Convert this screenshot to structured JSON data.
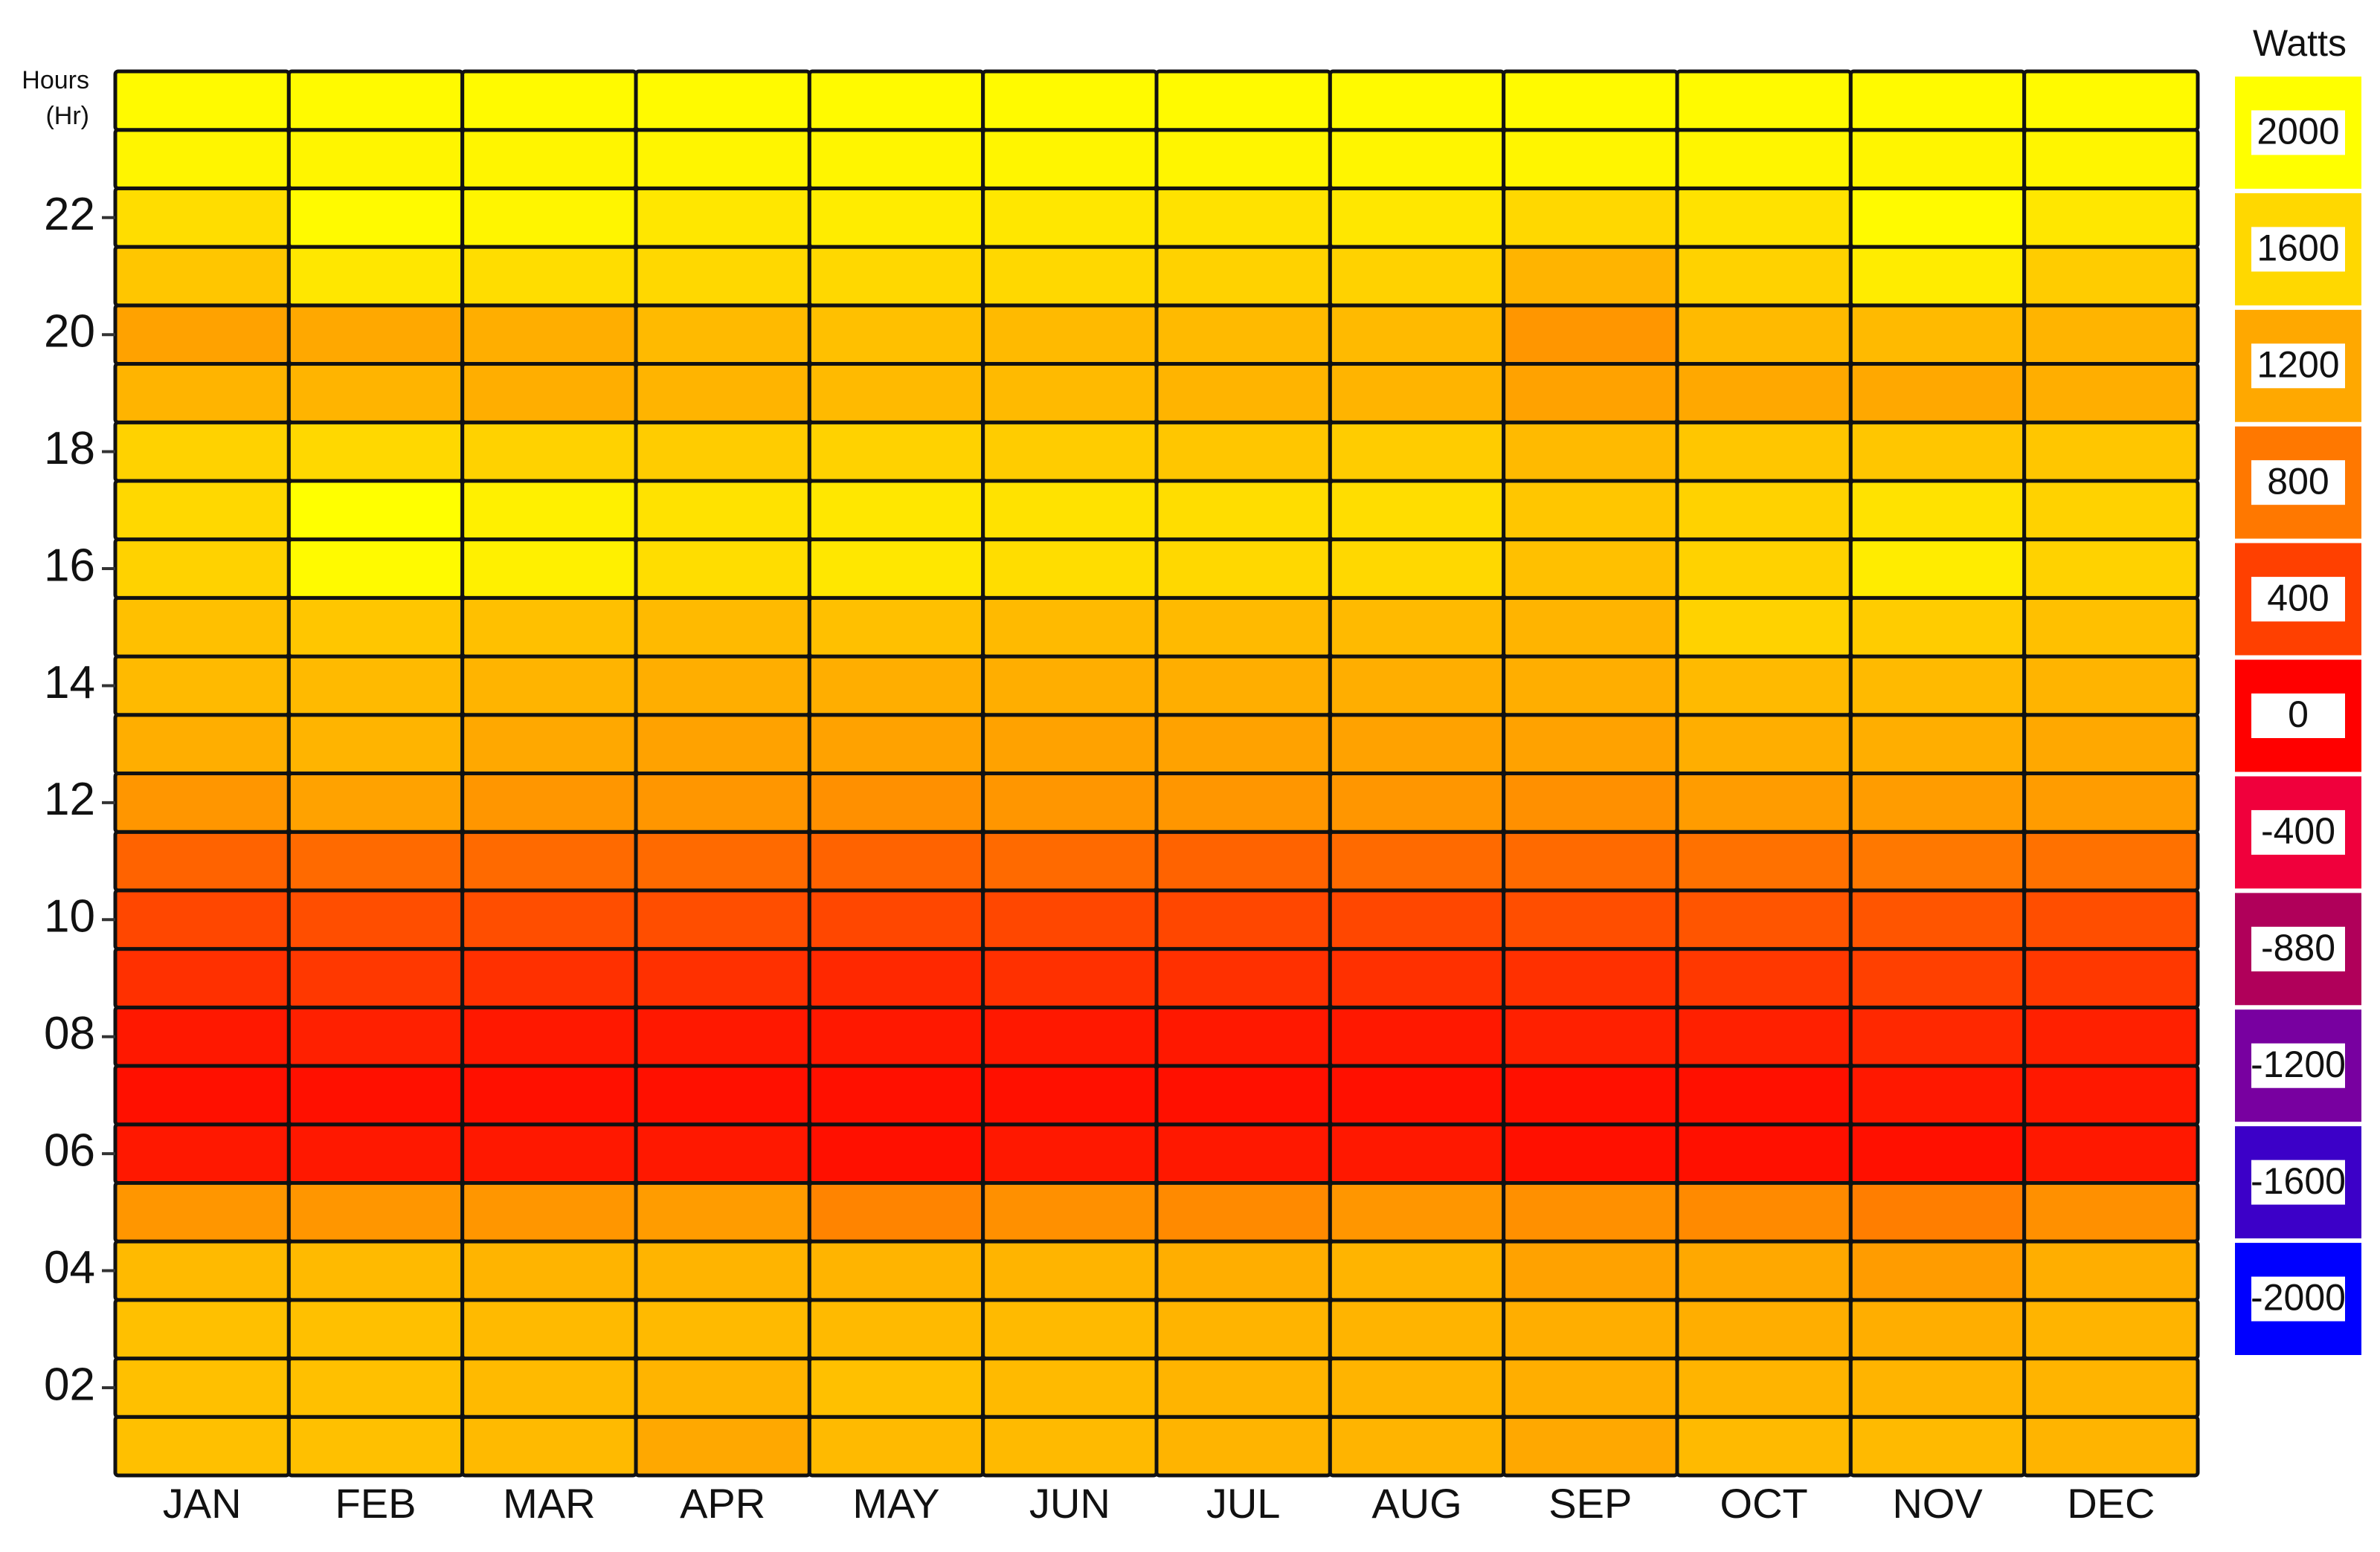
{
  "chart_data": {
    "type": "heatmap",
    "y_label": [
      "Hours",
      "(Hr)"
    ],
    "categories": [
      "JAN",
      "FEB",
      "MAR",
      "APR",
      "MAY",
      "JUN",
      "JUL",
      "AUG",
      "SEP",
      "OCT",
      "NOV",
      "DEC"
    ],
    "y": [
      1,
      2,
      3,
      4,
      5,
      6,
      7,
      8,
      9,
      10,
      11,
      12,
      13,
      14,
      15,
      16,
      17,
      18,
      19,
      20,
      21,
      22,
      23,
      24
    ],
    "ylim": [
      0.5,
      24.5
    ],
    "yticks": [
      {
        "value": 2,
        "label": "02"
      },
      {
        "value": 4,
        "label": "04"
      },
      {
        "value": 6,
        "label": "06"
      },
      {
        "value": 8,
        "label": "08"
      },
      10,
      12,
      14,
      16,
      18,
      20,
      22
    ],
    "z": [
      [
        1400,
        1400,
        1350,
        1200,
        1350,
        1350,
        1300,
        1300,
        1200,
        1350,
        1350,
        1300
      ],
      [
        1400,
        1400,
        1350,
        1300,
        1400,
        1350,
        1300,
        1300,
        1250,
        1300,
        1300,
        1300
      ],
      [
        1400,
        1400,
        1350,
        1350,
        1350,
        1350,
        1300,
        1300,
        1250,
        1250,
        1250,
        1300
      ],
      [
        1350,
        1350,
        1300,
        1300,
        1300,
        1300,
        1250,
        1300,
        1150,
        1200,
        1100,
        1250
      ],
      [
        1050,
        1050,
        1050,
        1100,
        900,
        1000,
        950,
        1050,
        1000,
        950,
        850,
        1000
      ],
      [
        150,
        150,
        150,
        150,
        100,
        150,
        150,
        150,
        100,
        100,
        100,
        150
      ],
      [
        100,
        100,
        100,
        100,
        100,
        100,
        100,
        100,
        100,
        100,
        150,
        150
      ],
      [
        150,
        200,
        150,
        150,
        150,
        150,
        150,
        150,
        200,
        200,
        250,
        200
      ],
      [
        300,
        350,
        300,
        300,
        250,
        300,
        300,
        300,
        300,
        350,
        400,
        350
      ],
      [
        450,
        500,
        500,
        500,
        450,
        450,
        450,
        450,
        500,
        550,
        550,
        500
      ],
      [
        650,
        700,
        700,
        700,
        650,
        700,
        650,
        700,
        700,
        750,
        800,
        750
      ],
      [
        1050,
        1150,
        1050,
        1050,
        1000,
        1050,
        1050,
        1050,
        1000,
        1100,
        1100,
        1100
      ],
      [
        1250,
        1300,
        1200,
        1150,
        1150,
        1150,
        1150,
        1150,
        1150,
        1250,
        1250,
        1200
      ],
      [
        1350,
        1350,
        1300,
        1250,
        1250,
        1250,
        1250,
        1250,
        1250,
        1350,
        1350,
        1300
      ],
      [
        1400,
        1450,
        1400,
        1350,
        1400,
        1350,
        1350,
        1350,
        1300,
        1550,
        1500,
        1400
      ],
      [
        1550,
        1950,
        1850,
        1650,
        1750,
        1650,
        1600,
        1600,
        1400,
        1550,
        1800,
        1550
      ],
      [
        1600,
        2000,
        1850,
        1700,
        1750,
        1700,
        1650,
        1650,
        1450,
        1550,
        1700,
        1550
      ],
      [
        1550,
        1600,
        1550,
        1500,
        1550,
        1500,
        1450,
        1500,
        1350,
        1450,
        1450,
        1450
      ],
      [
        1300,
        1300,
        1250,
        1300,
        1350,
        1350,
        1300,
        1300,
        1150,
        1200,
        1200,
        1250
      ],
      [
        1150,
        1200,
        1250,
        1350,
        1400,
        1350,
        1350,
        1350,
        1050,
        1350,
        1350,
        1300
      ],
      [
        1450,
        1750,
        1650,
        1600,
        1600,
        1600,
        1550,
        1550,
        1300,
        1550,
        1800,
        1500
      ],
      [
        1650,
        1950,
        1900,
        1750,
        1800,
        1750,
        1700,
        1750,
        1600,
        1700,
        1950,
        1750
      ],
      [
        1900,
        1900,
        1900,
        1900,
        1900,
        1900,
        1900,
        1900,
        1900,
        1900,
        1900,
        1900
      ],
      [
        1950,
        1950,
        1950,
        1950,
        1950,
        1950,
        1950,
        1950,
        1950,
        1950,
        1950,
        1950
      ]
    ],
    "colorbar": {
      "title": "Watts",
      "ticks": [
        2000,
        1600,
        1200,
        800,
        400,
        0,
        -400,
        -880,
        -1200,
        -1600,
        -2000
      ],
      "colors": [
        "#ffff00",
        "#ffd800",
        "#ffa800",
        "#ff7800",
        "#ff4000",
        "#ff0000",
        "#f0003c",
        "#b0005a",
        "#7800a0",
        "#3c00c8",
        "#0000ff"
      ]
    }
  }
}
